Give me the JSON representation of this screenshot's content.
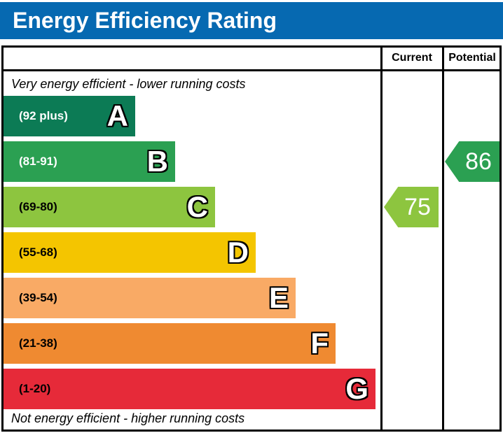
{
  "title_bar": {
    "title": "Energy Efficiency Rating",
    "background": "#0669b1"
  },
  "table_header": {
    "current_label": "Current",
    "potential_label": "Potential"
  },
  "captions": {
    "top": "Very energy efficient - lower running costs",
    "bottom": "Not energy efficient - higher running costs"
  },
  "bands": [
    {
      "letter": "A",
      "range": "(92 plus)",
      "min": 92,
      "max": 100,
      "color": "#0c7b55",
      "label_color": "#ffffff"
    },
    {
      "letter": "B",
      "range": "(81-91)",
      "min": 81,
      "max": 91,
      "color": "#2ba052",
      "label_color": "#ffffff"
    },
    {
      "letter": "C",
      "range": "(69-80)",
      "min": 69,
      "max": 80,
      "color": "#8dc53f",
      "label_color": "#000000"
    },
    {
      "letter": "D",
      "range": "(55-68)",
      "min": 55,
      "max": 68,
      "color": "#f4c500",
      "label_color": "#000000"
    },
    {
      "letter": "E",
      "range": "(39-54)",
      "min": 39,
      "max": 54,
      "color": "#f9aa65",
      "label_color": "#000000"
    },
    {
      "letter": "F",
      "range": "(21-38)",
      "min": 21,
      "max": 38,
      "color": "#ef8a31",
      "label_color": "#000000"
    },
    {
      "letter": "G",
      "range": "(1-20)",
      "min": 1,
      "max": 20,
      "color": "#e62a39",
      "label_color": "#000000"
    }
  ],
  "ratings": {
    "current": {
      "value": 75,
      "color": "#8dc53f"
    },
    "potential": {
      "value": 86,
      "color": "#2ba052"
    }
  },
  "chart_data": {
    "type": "bar",
    "title": "Energy Efficiency Rating",
    "categories": [
      "A (92 plus)",
      "B (81-91)",
      "C (69-80)",
      "D (55-68)",
      "E (39-54)",
      "F (21-38)",
      "G (1-20)"
    ],
    "band_colors": [
      "#0c7b55",
      "#2ba052",
      "#8dc53f",
      "#f4c500",
      "#f9aa65",
      "#ef8a31",
      "#e62a39"
    ],
    "columns": [
      "Current",
      "Potential"
    ],
    "current": {
      "value": 75,
      "band": "C"
    },
    "potential": {
      "value": 86,
      "band": "B"
    },
    "annotations": [
      "Very energy efficient - lower running costs",
      "Not energy efficient - higher running costs"
    ],
    "legend_position": "none",
    "grid": false
  }
}
